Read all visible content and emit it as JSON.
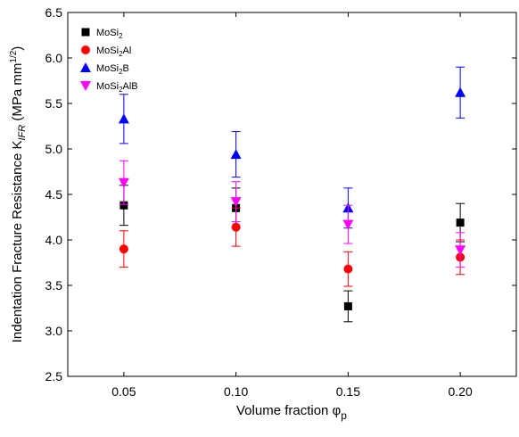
{
  "chart_data": {
    "type": "scatter",
    "xlabel": "Volume fraction φ",
    "xlabel_sub": "p",
    "ylabel_main": "Indentation Fracture Resistance K",
    "ylabel_sub": "IFR",
    "ylabel_unit": " (MPa mm",
    "ylabel_sup": "1/2",
    "ylabel_close": ")",
    "x_ticks": [
      "0.05",
      "0.10",
      "0.15",
      "0.20"
    ],
    "x_values": [
      0.05,
      0.1,
      0.15,
      0.2
    ],
    "xlim": [
      0.025,
      0.225
    ],
    "y_ticks": [
      "2.5",
      "3.0",
      "3.5",
      "4.0",
      "4.5",
      "5.0",
      "5.5",
      "6.0",
      "6.5"
    ],
    "ylim": [
      2.5,
      6.5
    ],
    "legend_position": "top-left",
    "series": [
      {
        "name_base": "MoSi",
        "name_sub": "2",
        "name_tail": "",
        "marker": "square",
        "color": "#000000",
        "values": [
          4.38,
          4.35,
          3.27,
          4.19
        ],
        "err": [
          0.22,
          0.22,
          0.17,
          0.21
        ]
      },
      {
        "name_base": "MoSi",
        "name_sub": "2",
        "name_tail": "Al",
        "marker": "circle",
        "color": "#ff0000",
        "values": [
          3.9,
          4.14,
          3.68,
          3.81
        ],
        "err": [
          0.2,
          0.21,
          0.19,
          0.19
        ]
      },
      {
        "name_base": "MoSi",
        "name_sub": "2",
        "name_tail": "B",
        "marker": "triangle-up",
        "color": "#0000ff",
        "values": [
          5.33,
          4.94,
          4.35,
          5.62
        ],
        "err": [
          0.27,
          0.25,
          0.22,
          0.28
        ]
      },
      {
        "name_base": "MoSi",
        "name_sub": "2",
        "name_tail": "AlB",
        "marker": "triangle-down",
        "color": "#ff00ff",
        "values": [
          4.63,
          4.42,
          4.17,
          3.89
        ],
        "err": [
          0.24,
          0.22,
          0.21,
          0.19
        ]
      }
    ]
  }
}
